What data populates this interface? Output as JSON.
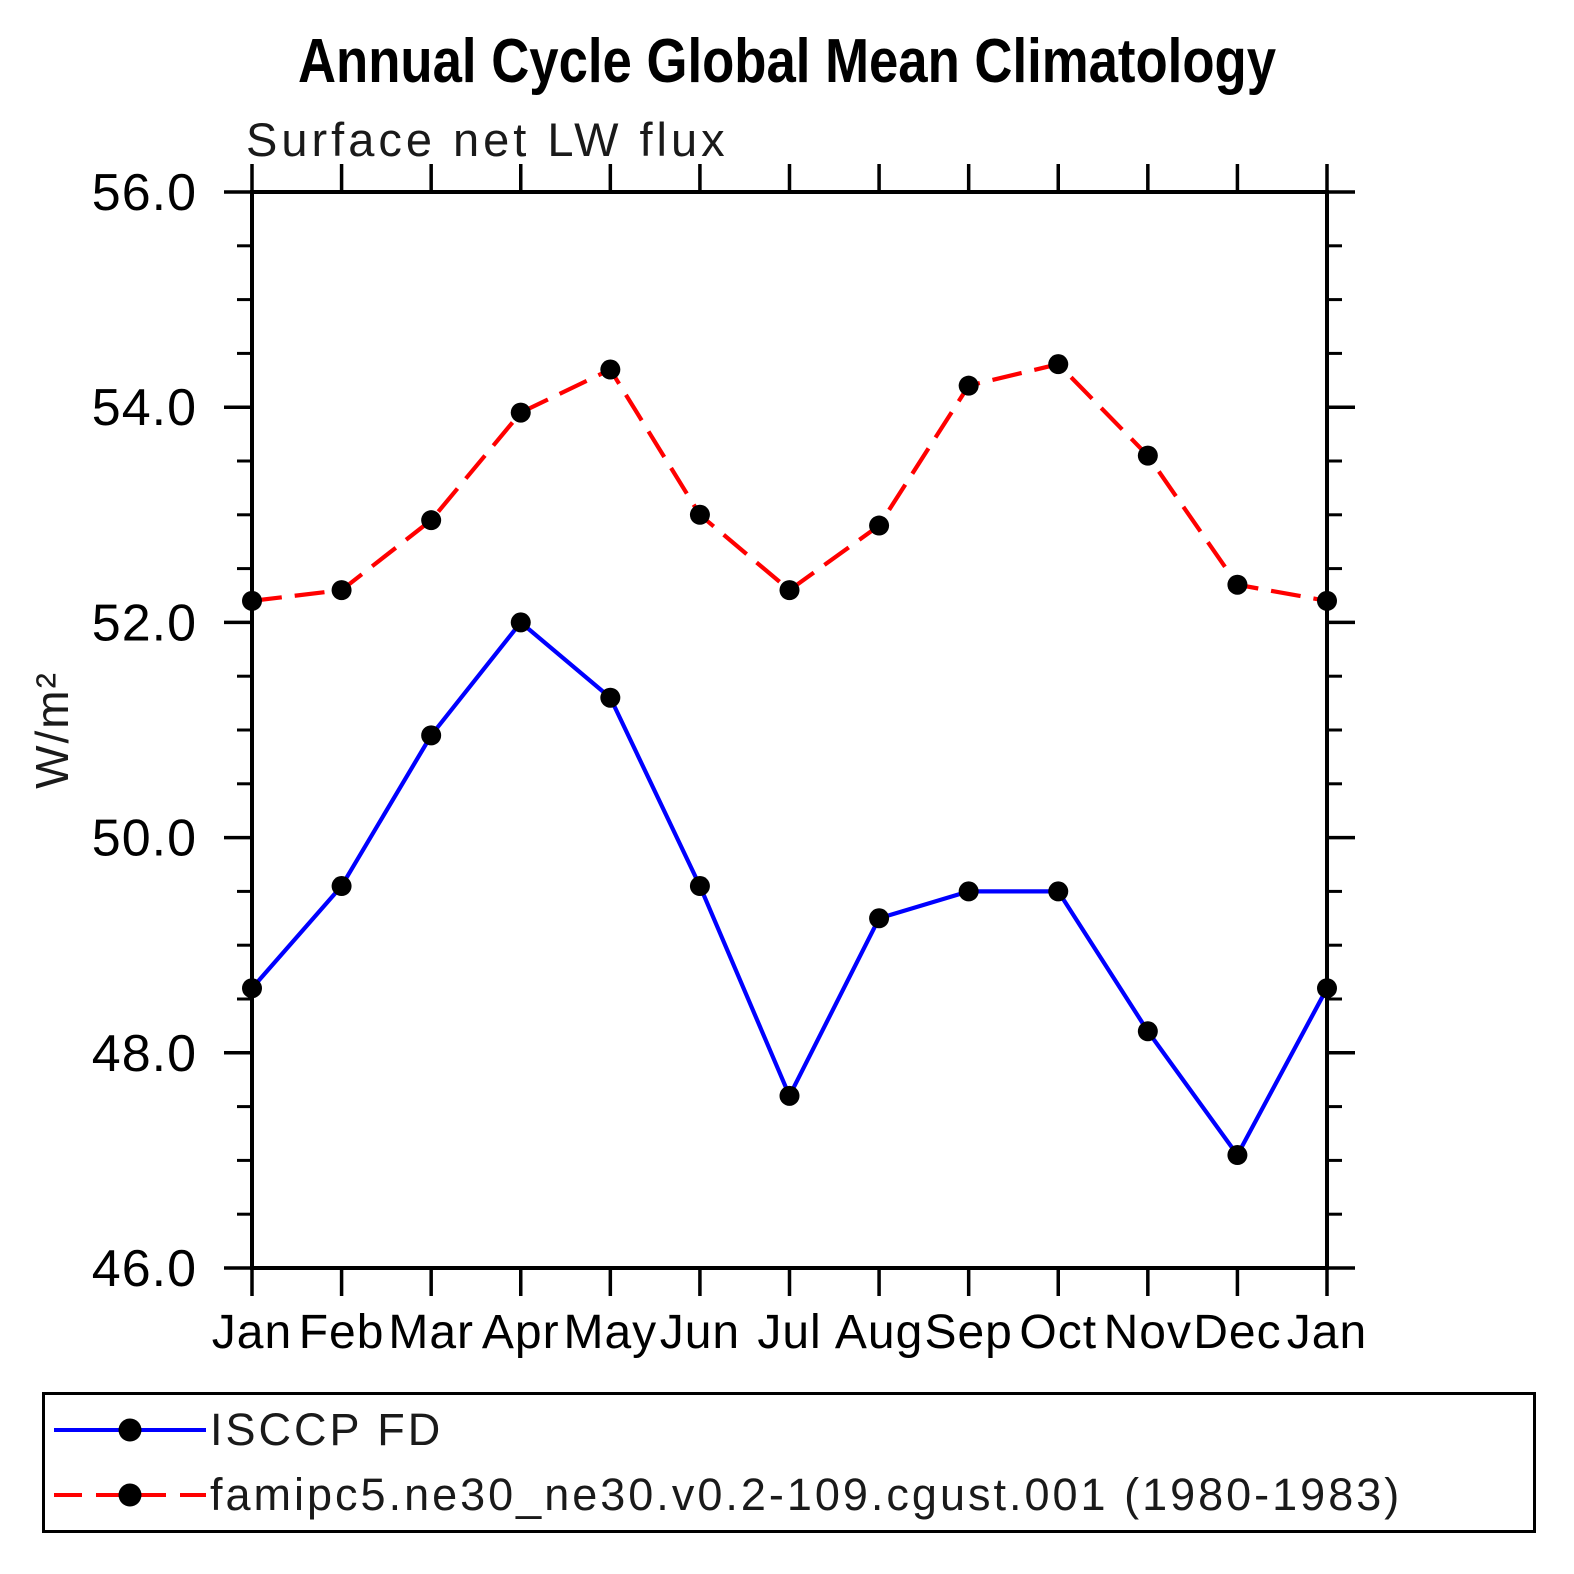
{
  "title": "Annual Cycle Global Mean Climatology",
  "subtitle": "Surface net LW flux",
  "y_axis_label": "W/m²",
  "chart_data": {
    "type": "line",
    "title": "Annual Cycle Global Mean Climatology",
    "subtitle": "Surface net LW flux",
    "ylabel": "W/m²",
    "categories": [
      "Jan",
      "Feb",
      "Mar",
      "Apr",
      "May",
      "Jun",
      "Jul",
      "Aug",
      "Sep",
      "Oct",
      "Nov",
      "Dec",
      "Jan"
    ],
    "series": [
      {
        "name": "ISCCP FD",
        "color": "#0000ff",
        "line_style": "solid",
        "marker": "circle",
        "marker_color": "#000000",
        "values": [
          48.6,
          49.55,
          50.95,
          52.0,
          51.3,
          49.55,
          47.6,
          49.25,
          49.5,
          49.5,
          48.2,
          47.05,
          48.6
        ]
      },
      {
        "name": "famipc5.ne30_ne30.v0.2-109.cgust.001 (1980-1983)",
        "color": "#ff0000",
        "line_style": "dashed",
        "marker": "circle",
        "marker_color": "#000000",
        "values": [
          52.2,
          52.3,
          52.95,
          53.95,
          54.35,
          53.0,
          52.3,
          52.9,
          54.2,
          54.4,
          53.55,
          52.35,
          52.2
        ]
      }
    ],
    "ylim": [
      46.0,
      56.0
    ],
    "y_major_ticks": [
      46.0,
      48.0,
      50.0,
      52.0,
      54.0,
      56.0
    ],
    "y_tick_labels": [
      "46.0",
      "48.0",
      "50.0",
      "52.0",
      "54.0",
      "56.0"
    ],
    "y_minor_step": 0.5,
    "axis_color": "#000000",
    "grid": false,
    "legend_position": "bottom"
  }
}
